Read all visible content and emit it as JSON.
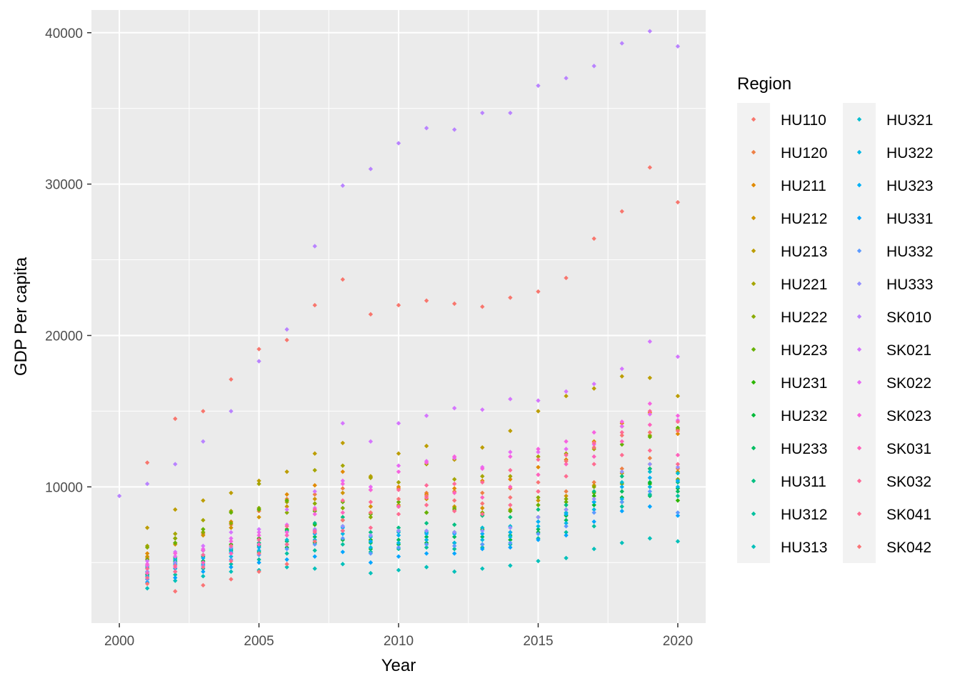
{
  "chart_data": {
    "type": "scatter",
    "xlabel": "Year",
    "ylabel": "GDP Per capita",
    "xlim": [
      1999.0,
      2021.0
    ],
    "ylim": [
      1000,
      41500
    ],
    "x_ticks": [
      2000,
      2005,
      2010,
      2015,
      2020
    ],
    "x_tick_labels": [
      "2000",
      "2005",
      "2010",
      "2015",
      "2020"
    ],
    "y_ticks": [
      10000,
      20000,
      30000,
      40000
    ],
    "y_tick_labels": [
      "10000",
      "20000",
      "30000",
      "40000"
    ],
    "grid": true,
    "legend": {
      "title": "Region",
      "position": "right",
      "columns": 2,
      "entries": [
        {
          "name": "HU110",
          "color": "#F8766D"
        },
        {
          "name": "HU120",
          "color": "#EE8045"
        },
        {
          "name": "HU211",
          "color": "#E18A00"
        },
        {
          "name": "HU212",
          "color": "#D09400"
        },
        {
          "name": "HU213",
          "color": "#BC9D00"
        },
        {
          "name": "HU221",
          "color": "#A5A500"
        },
        {
          "name": "HU222",
          "color": "#8AAB00"
        },
        {
          "name": "HU223",
          "color": "#66B100"
        },
        {
          "name": "HU231",
          "color": "#2BB600"
        },
        {
          "name": "HU232",
          "color": "#00BA38"
        },
        {
          "name": "HU233",
          "color": "#00BD60"
        },
        {
          "name": "HU311",
          "color": "#00C081"
        },
        {
          "name": "HU312",
          "color": "#00C19F"
        },
        {
          "name": "HU313",
          "color": "#00C0BA"
        },
        {
          "name": "HU321",
          "color": "#00BDD0"
        },
        {
          "name": "HU322",
          "color": "#00B8E5"
        },
        {
          "name": "HU323",
          "color": "#00B0F6"
        },
        {
          "name": "HU331",
          "color": "#00A5FF"
        },
        {
          "name": "HU332",
          "color": "#5C9AFF"
        },
        {
          "name": "HU333",
          "color": "#9590FF"
        },
        {
          "name": "SK010",
          "color": "#B983FF"
        },
        {
          "name": "SK021",
          "color": "#D575FE"
        },
        {
          "name": "SK022",
          "color": "#E86BF4"
        },
        {
          "name": "SK023",
          "color": "#F763E0"
        },
        {
          "name": "SK031",
          "color": "#FF62BC"
        },
        {
          "name": "SK032",
          "color": "#FF6A98"
        },
        {
          "name": "SK041",
          "color": "#FF6C91"
        },
        {
          "name": "SK042",
          "color": "#FA7476"
        }
      ]
    },
    "x_years": [
      2000,
      2001,
      2002,
      2003,
      2004,
      2005,
      2006,
      2007,
      2008,
      2009,
      2010,
      2011,
      2012,
      2013,
      2014,
      2015,
      2016,
      2017,
      2018,
      2019,
      2020
    ],
    "series": [
      {
        "name": "HU110",
        "values": [
          null,
          11600,
          14500,
          15000,
          17100,
          19100,
          19700,
          22000,
          23700,
          21400,
          22000,
          22300,
          22100,
          21900,
          22500,
          22900,
          23800,
          26400,
          28200,
          31100,
          28800
        ]
      },
      {
        "name": "HU120",
        "values": [
          null,
          5300,
          6600,
          6900,
          7500,
          8400,
          9200,
          9500,
          9900,
          9800,
          9900,
          9600,
          9700,
          9600,
          9900,
          9700,
          9700,
          10300,
          11200,
          11900,
          11200
        ]
      },
      {
        "name": "HU211",
        "values": [
          null,
          5600,
          6300,
          7000,
          7700,
          8500,
          9500,
          10100,
          11000,
          10600,
          10000,
          9500,
          9900,
          10400,
          10500,
          11300,
          11800,
          13000,
          14200,
          14900,
          13500
        ]
      },
      {
        "name": "HU212",
        "values": [
          null,
          5400,
          6200,
          6800,
          7300,
          8000,
          8700,
          9200,
          9600,
          8700,
          8800,
          9200,
          8700,
          8600,
          8500,
          9100,
          9400,
          10100,
          10900,
          11500,
          11000
        ]
      },
      {
        "name": "HU213",
        "values": [
          null,
          7300,
          8500,
          9100,
          9600,
          10400,
          11000,
          12200,
          12900,
          10700,
          12200,
          12700,
          11800,
          12600,
          13700,
          15000,
          16000,
          16500,
          17300,
          17200,
          16000
        ]
      },
      {
        "name": "HU221",
        "values": [
          null,
          6100,
          6900,
          7800,
          8400,
          10200,
          9000,
          11100,
          11400,
          10600,
          10300,
          11500,
          10500,
          10700,
          10700,
          12000,
          12200,
          12500,
          14000,
          13400,
          13800
        ]
      },
      {
        "name": "HU222",
        "values": [
          null,
          6000,
          6600,
          7000,
          7600,
          8600,
          8300,
          8900,
          8600,
          8000,
          8700,
          8300,
          8600,
          8300,
          8400,
          9300,
          9200,
          10000,
          10200,
          11200,
          10500
        ]
      },
      {
        "name": "HU223",
        "values": [
          null,
          5200,
          6300,
          7200,
          8300,
          8500,
          9100,
          8400,
          9000,
          8200,
          9000,
          8300,
          8500,
          8200,
          8400,
          8800,
          9000,
          9600,
          12800,
          13300,
          13900
        ]
      },
      {
        "name": "HU231",
        "values": [
          null,
          4800,
          5400,
          5800,
          6200,
          6600,
          7200,
          7500,
          7800,
          6500,
          7100,
          7000,
          7000,
          7200,
          7000,
          8000,
          8500,
          9400,
          9000,
          10200,
          9100
        ]
      },
      {
        "name": "HU232",
        "values": [
          null,
          4200,
          5000,
          5100,
          5600,
          5700,
          6000,
          6300,
          6500,
          5900,
          6200,
          6300,
          6300,
          6200,
          6500,
          7000,
          8100,
          8800,
          9300,
          10300,
          9900
        ]
      },
      {
        "name": "HU233",
        "values": [
          null,
          4600,
          5100,
          5400,
          5800,
          6100,
          6400,
          6700,
          7100,
          6300,
          6500,
          6700,
          6700,
          6700,
          6800,
          7200,
          7800,
          9000,
          9700,
          9400,
          9700
        ]
      },
      {
        "name": "HU311",
        "values": [
          null,
          4400,
          5300,
          5800,
          5900,
          6300,
          7100,
          7600,
          8000,
          7000,
          7300,
          7600,
          7500,
          8100,
          8000,
          8500,
          8800,
          9700,
          10700,
          11200,
          10300
        ]
      },
      {
        "name": "HU312",
        "values": [
          null,
          3900,
          4200,
          4600,
          4900,
          5200,
          5600,
          5800,
          6200,
          5700,
          5900,
          6000,
          5900,
          6000,
          6200,
          6600,
          7000,
          7400,
          8700,
          9500,
          9400
        ]
      },
      {
        "name": "HU313",
        "values": [
          null,
          3300,
          3800,
          4100,
          4400,
          4500,
          4700,
          4600,
          4900,
          4300,
          4500,
          4700,
          4400,
          4600,
          4800,
          5100,
          5300,
          5900,
          6300,
          6600,
          6400
        ]
      },
      {
        "name": "HU321",
        "values": [
          null,
          4700,
          5200,
          5500,
          5900,
          6200,
          6500,
          7100,
          7400,
          6700,
          7000,
          7000,
          7000,
          7300,
          7400,
          7700,
          8300,
          9000,
          10300,
          11000,
          10900
        ]
      },
      {
        "name": "HU322",
        "values": [
          null,
          4100,
          4600,
          4900,
          5400,
          5800,
          6200,
          6500,
          6900,
          6000,
          6300,
          6500,
          6300,
          6500,
          6700,
          7400,
          7600,
          8500,
          9200,
          10000,
          10000
        ]
      },
      {
        "name": "HU323",
        "values": [
          null,
          4300,
          4900,
          5300,
          5700,
          6000,
          6200,
          6900,
          7300,
          6400,
          6800,
          6900,
          6900,
          6900,
          7000,
          7700,
          8200,
          9000,
          10000,
          10600,
          10400
        ]
      },
      {
        "name": "HU331",
        "values": [
          null,
          3700,
          4000,
          4400,
          4700,
          5000,
          5200,
          5400,
          5700,
          5000,
          5400,
          5600,
          5600,
          5900,
          6000,
          6500,
          6800,
          7700,
          8400,
          8700,
          8100
        ]
      },
      {
        "name": "HU332",
        "values": [
          null,
          3900,
          4400,
          4800,
          5200,
          5500,
          5900,
          6200,
          6600,
          5600,
          6000,
          6200,
          6100,
          6200,
          6300,
          6900,
          7400,
          8300,
          9000,
          9700,
          8300
        ]
      },
      {
        "name": "HU333",
        "values": [
          null,
          4400,
          5000,
          5500,
          6000,
          6500,
          6800,
          7200,
          7400,
          6800,
          7100,
          7100,
          7000,
          7100,
          7300,
          8000,
          8500,
          9200,
          11000,
          11500,
          11300
        ]
      },
      {
        "name": "SK010",
        "values": [
          9400,
          10200,
          11500,
          13000,
          15000,
          18300,
          20400,
          25900,
          29900,
          31000,
          32700,
          33700,
          33600,
          34700,
          34700,
          36500,
          37000,
          37800,
          39300,
          40100,
          39100
        ]
      },
      {
        "name": "SK021",
        "values": [
          null,
          5100,
          5700,
          6100,
          7000,
          7200,
          8500,
          9700,
          14200,
          13000,
          14200,
          14700,
          15200,
          15100,
          15800,
          15700,
          16300,
          16800,
          17800,
          19600,
          18600
        ]
      },
      {
        "name": "SK022",
        "values": [
          null,
          4800,
          5400,
          5900,
          6600,
          7000,
          7500,
          8600,
          10400,
          10000,
          11400,
          11700,
          11900,
          11300,
          12300,
          12300,
          12500,
          12800,
          14000,
          14800,
          14400
        ]
      },
      {
        "name": "SK023",
        "values": [
          null,
          4900,
          5600,
          5800,
          6400,
          6800,
          7000,
          8200,
          10200,
          9800,
          11000,
          11600,
          12000,
          11200,
          12000,
          12500,
          13000,
          13600,
          14300,
          15500,
          14700
        ]
      },
      {
        "name": "SK031",
        "values": [
          null,
          4300,
          4700,
          5000,
          5600,
          6200,
          6800,
          7100,
          8300,
          8300,
          8700,
          9300,
          9600,
          9300,
          10000,
          10800,
          11500,
          12000,
          13000,
          14100,
          12100
        ]
      },
      {
        "name": "SK032",
        "values": [
          null,
          4600,
          4800,
          5500,
          6100,
          6500,
          7400,
          8500,
          9100,
          9000,
          9800,
          10100,
          10200,
          10300,
          11100,
          11800,
          12100,
          12900,
          13600,
          15000,
          14300
        ]
      },
      {
        "name": "SK041",
        "values": [
          null,
          4000,
          4400,
          4700,
          5100,
          5600,
          6200,
          7000,
          7100,
          7300,
          8200,
          8800,
          8400,
          8200,
          8800,
          9700,
          10700,
          11500,
          12100,
          12400,
          11500
        ]
      },
      {
        "name": "SK042",
        "values": [
          null,
          3600,
          3100,
          3500,
          3900,
          4400,
          4900,
          6400,
          7800,
          8300,
          9200,
          9400,
          9100,
          8900,
          9300,
          10300,
          11700,
          12600,
          13400,
          13600,
          13700
        ]
      }
    ]
  }
}
